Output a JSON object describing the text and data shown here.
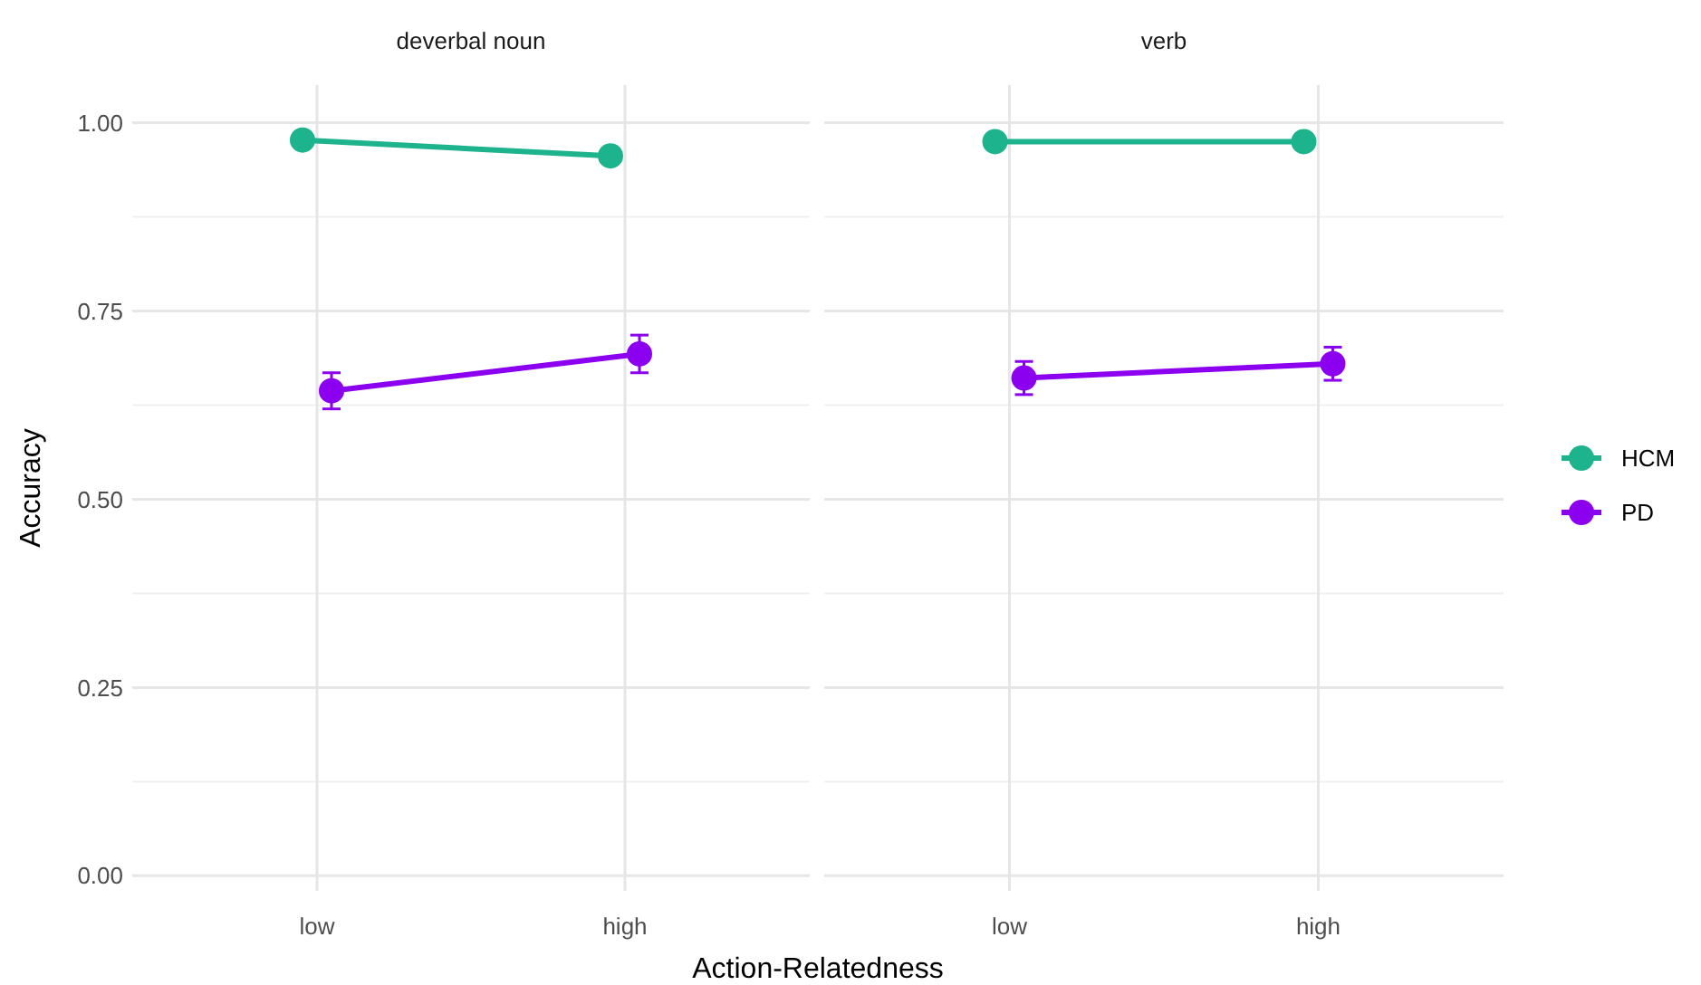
{
  "chart_data": [
    {
      "type": "line",
      "title": "deverbal noun",
      "xlabel": "Action-Relatedness",
      "ylabel": "Accuracy",
      "categories": [
        "low",
        "high"
      ],
      "ylim": [
        -0.02,
        1.05
      ],
      "yticks": [
        {
          "value": 0,
          "label": "0.00"
        },
        {
          "value": 0.25,
          "label": "0.25"
        },
        {
          "value": 0.5,
          "label": "0.50"
        },
        {
          "value": 0.75,
          "label": "0.75"
        },
        {
          "value": 1,
          "label": "1.00"
        }
      ],
      "grid": true,
      "marker": "circle",
      "series": [
        {
          "color": "#1db38c",
          "values": [
            0.977,
            0.956
          ]
        },
        {
          "color": "#8c00f0",
          "values": [
            0.644,
            0.693
          ],
          "errors": [
            0.024,
            0.025
          ]
        }
      ]
    },
    {
      "type": "line",
      "title": "verb",
      "categories": [
        "low",
        "high"
      ],
      "ylim": [
        -0.02,
        1.05
      ],
      "yticks": [
        0,
        0.25,
        0.5,
        0.75,
        1
      ],
      "tick_labels": "x",
      "grid": true,
      "marker": "circle",
      "legend": "right",
      "series": [
        {
          "name": "HCM",
          "color": "#1db38c",
          "values": [
            0.975,
            0.975
          ]
        },
        {
          "name": "PD",
          "color": "#8c00f0",
          "values": [
            0.661,
            0.68
          ],
          "errors": [
            0.022,
            0.022
          ]
        }
      ]
    }
  ]
}
